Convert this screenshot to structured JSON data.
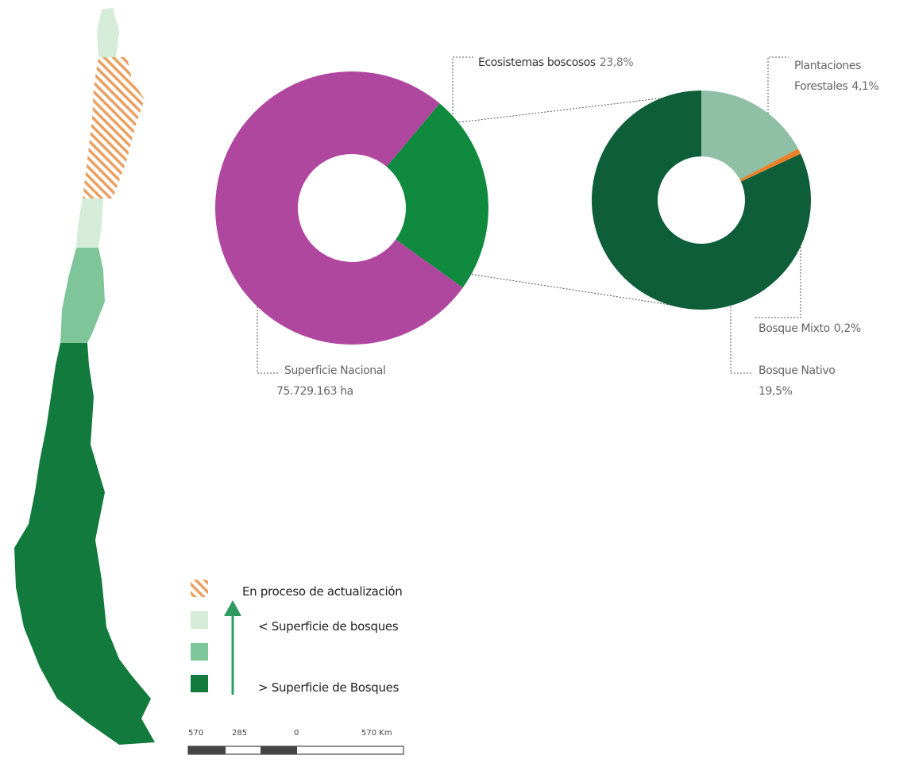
{
  "chart_data": [
    {
      "type": "donut",
      "categories": [
        "Ecosistemas boscosos",
        "Superficie Nacional"
      ],
      "values": [
        23.8,
        76.2
      ],
      "value_labels": [
        "23,8%",
        null
      ],
      "colors": [
        "#0f8a3e",
        "#b0479f"
      ],
      "annotations": [
        "75.729.163 ha"
      ]
    },
    {
      "type": "donut",
      "categories": [
        "Plantaciones Forestales",
        "Bosque Mixto",
        "Bosque Nativo"
      ],
      "values": [
        4.1,
        0.2,
        19.5
      ],
      "value_labels": [
        "4,1%",
        "0,2%",
        "19,5%"
      ],
      "colors": [
        "#8fbfa5",
        "#e8822a",
        "#0e5e3a"
      ]
    }
  ],
  "map": {
    "legend": [
      "En proceso de actualización",
      "< Superficie de bosques",
      "> Superficie de Bosques"
    ],
    "scale_labels": [
      "570",
      "285",
      "0",
      "570 Km"
    ]
  }
}
